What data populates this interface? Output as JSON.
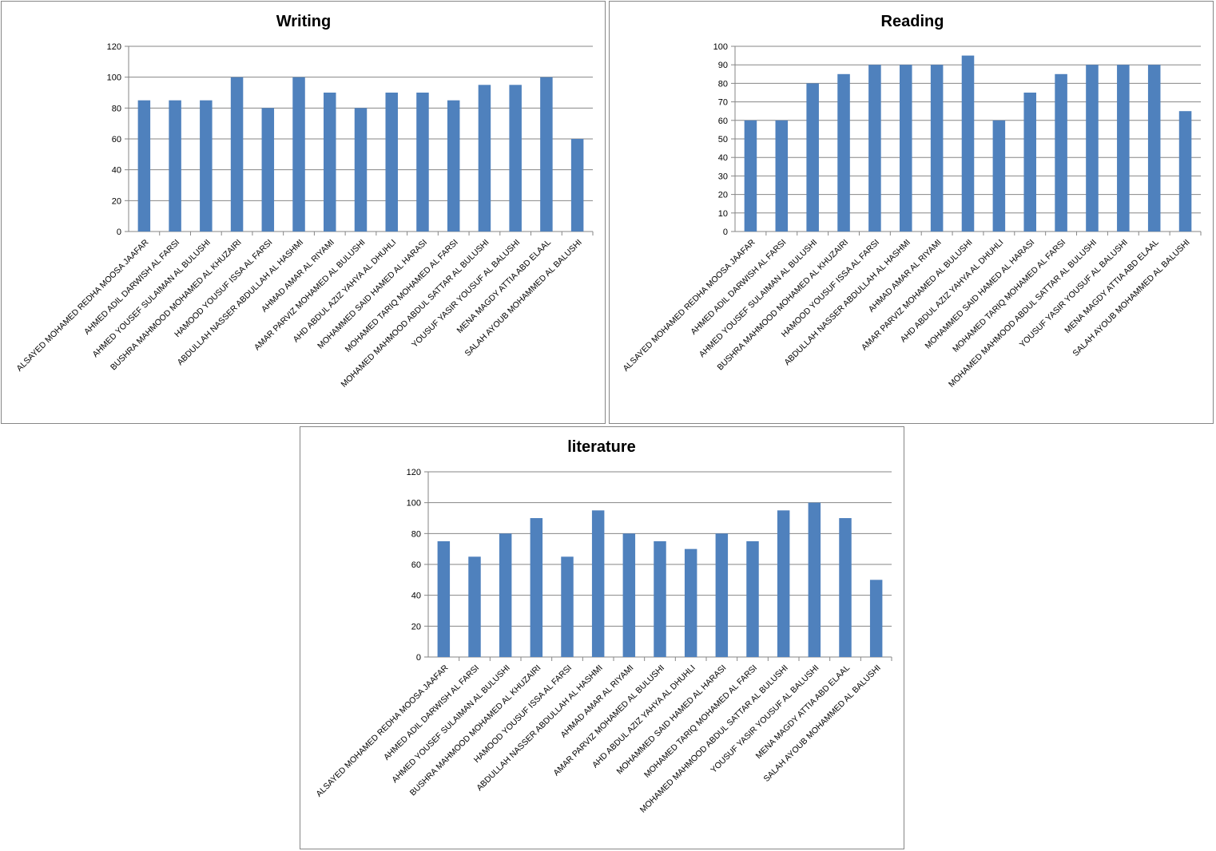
{
  "colors": {
    "bar": "#4f81bd",
    "gridline": "#868686",
    "axis": "#868686",
    "frame": "#868686"
  },
  "chart_data": [
    {
      "id": "writing",
      "type": "bar",
      "title": "Writing",
      "xlabel": "",
      "ylabel": "",
      "ylim": [
        0,
        120
      ],
      "ytick_step": 20,
      "grid": true,
      "legend": "none",
      "categories": [
        "ALSAYED MOHAMED  REDHA  MOOSA JAAFAR",
        "AHMED ADIL DARWISH  AL FARSI",
        "AHMED YOUSEF  SULAIMAN AL BULUSHI",
        "BUSHRA MAHMOOD MOHAMED  AL KHUZAIRI",
        "HAMOOD YOUSUF  ISSA AL FARSI",
        "ABDULLAH NASSER ABDULLAH AL HASHMI",
        "AHMAD AMAR  AL RIYAMI",
        "AMAR PARVIZ MOHAMED AL BULUSHI",
        "AHD ABDUL  AZIZ  YAHYA  AL DHUHLI",
        "MOHAMMED SAID HAMED AL HARASI",
        "MOHAMED TARIQ MOHAMED AL FARSI",
        "MOHAMED MAHMOOD ABDUL SATTAR  AL BULUSHI",
        "YOUSUF YASIR YOUSUF AL BALUSHI",
        "MENA MAGDY ATTIA  ABD  ELAAL",
        "SALAH AYOUB MOHAMMED  AL BALUSHI"
      ],
      "values": [
        85,
        85,
        85,
        100,
        80,
        100,
        90,
        80,
        90,
        90,
        85,
        95,
        95,
        100,
        60
      ]
    },
    {
      "id": "reading",
      "type": "bar",
      "title": "Reading",
      "xlabel": "",
      "ylabel": "",
      "ylim": [
        0,
        100
      ],
      "ytick_step": 10,
      "grid": true,
      "legend": "none",
      "categories": [
        "ALSAYED MOHAMED  REDHA  MOOSA JAAFAR",
        "AHMED ADIL DARWISH  AL FARSI",
        "AHMED YOUSEF  SULAIMAN  AL BULUSHI",
        "BUSHRA MAHMOOD MOHAMED  AL KHUZAIRI",
        "HAMOOD YOUSUF  ISSA AL FARSI",
        "ABDULLAH NASSER ABDULLAH AL HASHMI",
        "AHMAD AMAR  AL RIYAMI",
        "AMAR PARVIZ MOHAMED  AL BULUSHI",
        "AHD ABDUL  AZIZ  YAHYA  AL DHUHLI",
        "MOHAMMED SAID HAMED AL HARASI",
        "MOHAMED TARIQ MOHAMED  AL FARSI",
        "MOHAMED MAHMOOD ABDUL SATTAR  AL BULUSHI",
        "YOUSUF YASIR YOUSUF AL BALUSHI",
        "MENA MAGDY ATTIA  ABD  ELAAL",
        "SALAH AYOUB MOHAMMED  AL BALUSHI"
      ],
      "values": [
        60,
        60,
        80,
        85,
        90,
        90,
        90,
        95,
        60,
        75,
        85,
        90,
        90,
        90,
        65
      ]
    },
    {
      "id": "literature",
      "type": "bar",
      "title": "literature",
      "xlabel": "",
      "ylabel": "",
      "ylim": [
        0,
        120
      ],
      "ytick_step": 20,
      "grid": true,
      "legend": "none",
      "categories": [
        "ALSAYED MOHAMED  REDHA  MOOSA JAAFAR",
        "AHMED ADIL DARWISH  AL FARSI",
        "AHMED YOUSEF  SULAIMAN AL BULUSHI",
        "BUSHRA MAHMOOD MOHAMED  AL KHUZAIRI",
        "HAMOOD YOUSUF  ISSA AL FARSI",
        "ABDULLAH NASSER ABDULLAH AL HASHMI",
        "AHMAD AMAR  AL RIYAMI",
        "AMAR PARVIZ MOHAMED  AL BULUSHI",
        "AHD ABDUL  AZIZ  YAHYA  AL DHUHLI",
        "MOHAMMED SAID HAMED AL HARASI",
        "MOHAMED TARIQ MOHAMED  AL FARSI",
        "MOHAMED MAHMOOD ABDUL SATTAR  AL BULUSHI",
        "YOUSUF YASIR YOUSUF AL BALUSHI",
        "MENA MAGDY ATTIA  ABD  ELAAL",
        "SALAH AYOUB MOHAMMED  AL BALUSHI"
      ],
      "values": [
        75,
        65,
        80,
        90,
        65,
        95,
        80,
        75,
        70,
        80,
        75,
        95,
        100,
        90,
        50
      ]
    }
  ]
}
